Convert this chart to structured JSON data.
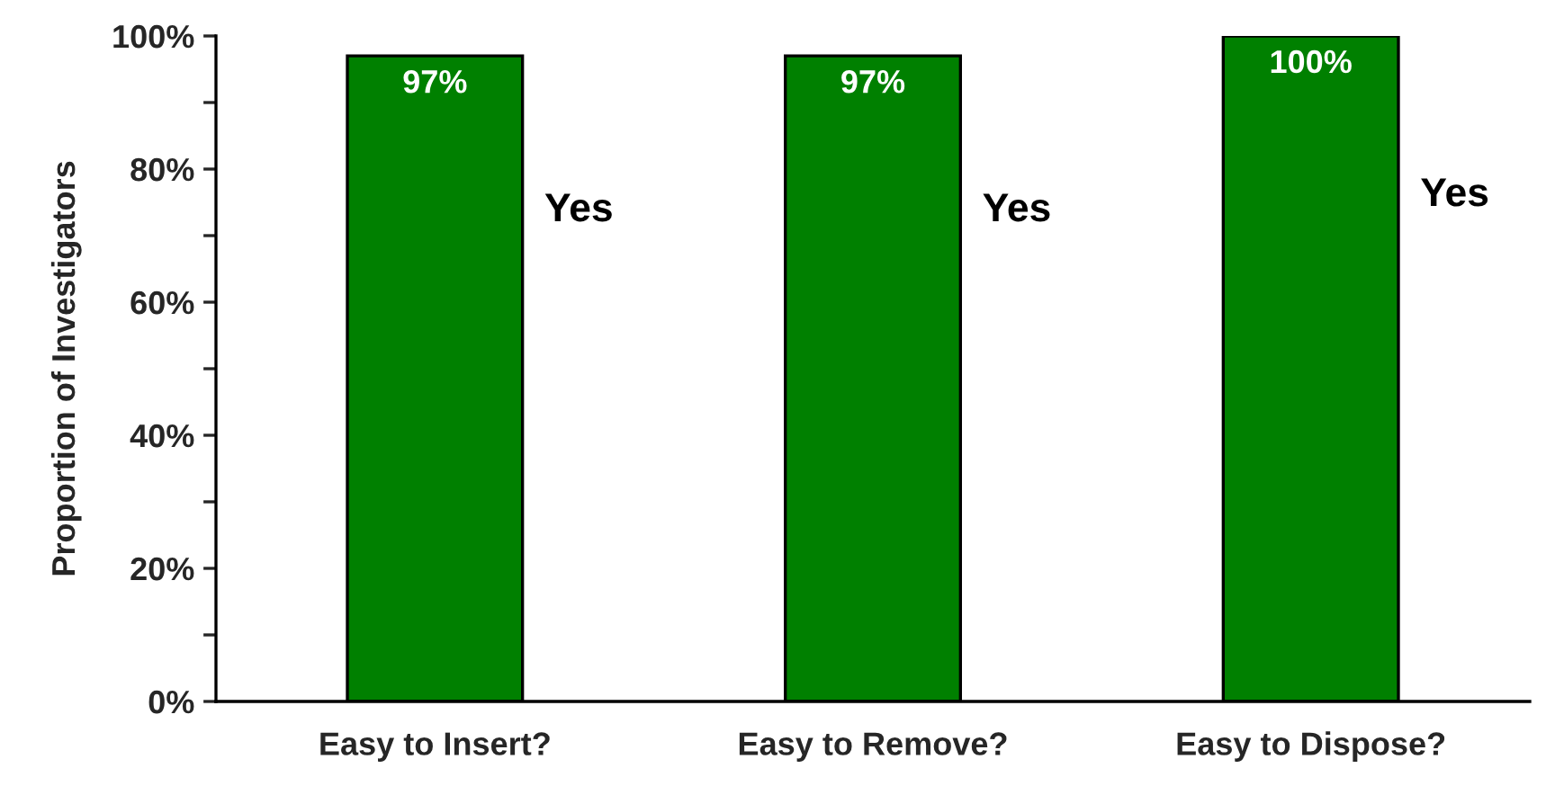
{
  "chart_data": {
    "type": "bar",
    "ylabel": "Proportion of Investigators",
    "categories": [
      "Easy to Insert?",
      "Easy to Remove?",
      "Easy to Dispose?"
    ],
    "series": [
      {
        "name": "Yes",
        "color": "#008000",
        "values": [
          97,
          97,
          100
        ],
        "value_labels": [
          "97%",
          "97%",
          "100%"
        ]
      }
    ],
    "ylim": [
      0,
      100
    ],
    "yticks": [
      {
        "value": 0,
        "label": "0%"
      },
      {
        "value": 10,
        "label": null
      },
      {
        "value": 20,
        "label": "20%"
      },
      {
        "value": 30,
        "label": null
      },
      {
        "value": 40,
        "label": "40%"
      },
      {
        "value": 50,
        "label": null
      },
      {
        "value": 60,
        "label": "60%"
      },
      {
        "value": 70,
        "label": null
      },
      {
        "value": 80,
        "label": "80%"
      },
      {
        "value": 90,
        "label": null
      },
      {
        "value": 100,
        "label": "100%"
      }
    ],
    "grid": false,
    "legend": false
  }
}
